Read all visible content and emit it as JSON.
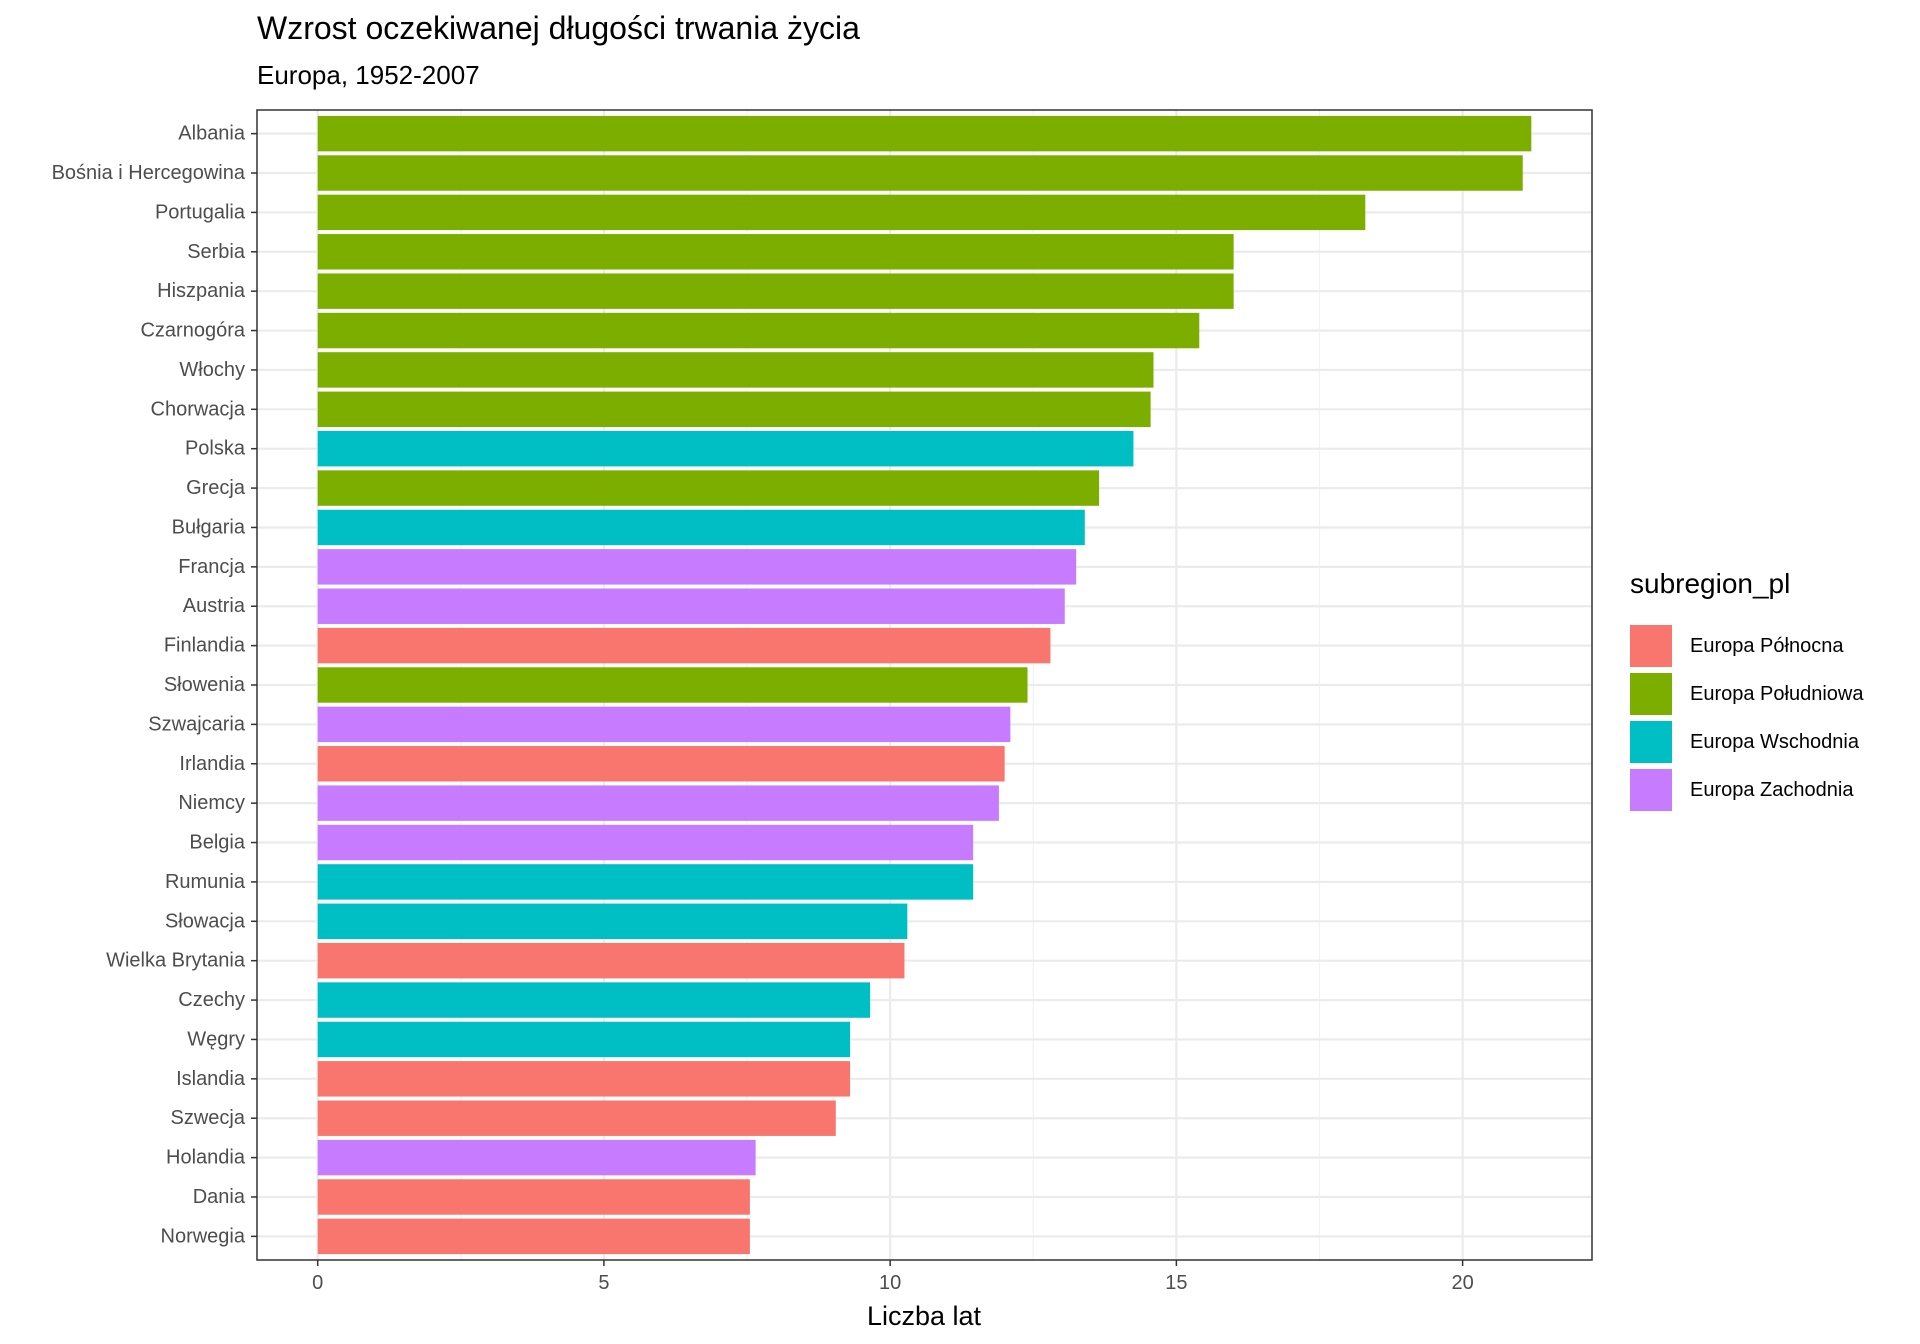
{
  "title": "Wzrost oczekiwanej długości trwania życia",
  "subtitle": "Europa, 1952-2007",
  "legend": {
    "title": "subregion_pl",
    "items": [
      {
        "label": "Europa Północna",
        "color": "#F8766D"
      },
      {
        "label": "Europa Południowa",
        "color": "#7CAE00"
      },
      {
        "label": "Europa Wschodnia",
        "color": "#00BFC4"
      },
      {
        "label": "Europa Zachodnia",
        "color": "#C77CFF"
      }
    ]
  },
  "chart_data": {
    "type": "bar",
    "orientation": "horizontal",
    "xlabel": "Liczba lat",
    "ylabel": "",
    "xlim": [
      -1.06,
      22.26
    ],
    "xticks": [
      0,
      5,
      10,
      15,
      20
    ],
    "grid": true,
    "legend_position": "right",
    "bars": [
      {
        "country": "Albania",
        "value": 21.2,
        "subregion": "Europa Południowa"
      },
      {
        "country": "Bośnia i Hercegowina",
        "value": 21.05,
        "subregion": "Europa Południowa"
      },
      {
        "country": "Portugalia",
        "value": 18.3,
        "subregion": "Europa Południowa"
      },
      {
        "country": "Serbia",
        "value": 16.0,
        "subregion": "Europa Południowa"
      },
      {
        "country": "Hiszpania",
        "value": 16.0,
        "subregion": "Europa Południowa"
      },
      {
        "country": "Czarnogóra",
        "value": 15.4,
        "subregion": "Europa Południowa"
      },
      {
        "country": "Włochy",
        "value": 14.6,
        "subregion": "Europa Południowa"
      },
      {
        "country": "Chorwacja",
        "value": 14.55,
        "subregion": "Europa Południowa"
      },
      {
        "country": "Polska",
        "value": 14.25,
        "subregion": "Europa Wschodnia"
      },
      {
        "country": "Grecja",
        "value": 13.65,
        "subregion": "Europa Południowa"
      },
      {
        "country": "Bułgaria",
        "value": 13.4,
        "subregion": "Europa Wschodnia"
      },
      {
        "country": "Francja",
        "value": 13.25,
        "subregion": "Europa Zachodnia"
      },
      {
        "country": "Austria",
        "value": 13.05,
        "subregion": "Europa Zachodnia"
      },
      {
        "country": "Finlandia",
        "value": 12.8,
        "subregion": "Europa Północna"
      },
      {
        "country": "Słowenia",
        "value": 12.4,
        "subregion": "Europa Południowa"
      },
      {
        "country": "Szwajcaria",
        "value": 12.1,
        "subregion": "Europa Zachodnia"
      },
      {
        "country": "Irlandia",
        "value": 12.0,
        "subregion": "Europa Północna"
      },
      {
        "country": "Niemcy",
        "value": 11.9,
        "subregion": "Europa Zachodnia"
      },
      {
        "country": "Belgia",
        "value": 11.45,
        "subregion": "Europa Zachodnia"
      },
      {
        "country": "Rumunia",
        "value": 11.45,
        "subregion": "Europa Wschodnia"
      },
      {
        "country": "Słowacja",
        "value": 10.3,
        "subregion": "Europa Wschodnia"
      },
      {
        "country": "Wielka Brytania",
        "value": 10.25,
        "subregion": "Europa Północna"
      },
      {
        "country": "Czechy",
        "value": 9.65,
        "subregion": "Europa Wschodnia"
      },
      {
        "country": "Węgry",
        "value": 9.3,
        "subregion": "Europa Wschodnia"
      },
      {
        "country": "Islandia",
        "value": 9.3,
        "subregion": "Europa Północna"
      },
      {
        "country": "Szwecja",
        "value": 9.05,
        "subregion": "Europa Północna"
      },
      {
        "country": "Holandia",
        "value": 7.65,
        "subregion": "Europa Zachodnia"
      },
      {
        "country": "Dania",
        "value": 7.55,
        "subregion": "Europa Północna"
      },
      {
        "country": "Norwegia",
        "value": 7.55,
        "subregion": "Europa Północna"
      }
    ]
  }
}
